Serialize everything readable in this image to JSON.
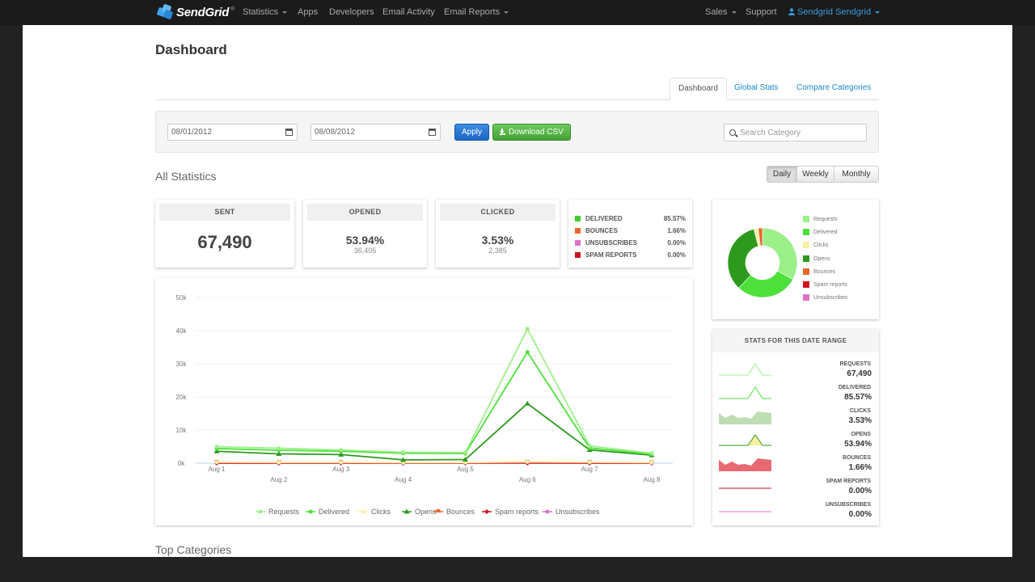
{
  "app": {
    "brand": "SendGrid",
    "brand_mark": "®"
  },
  "topnav": {
    "items": [
      {
        "label": "Statistics",
        "dropdown": true
      },
      {
        "label": "Apps",
        "dropdown": false
      },
      {
        "label": "Developers",
        "dropdown": false
      },
      {
        "label": "Email Activity",
        "dropdown": false
      },
      {
        "label": "Email Reports",
        "dropdown": true
      }
    ],
    "right": [
      {
        "label": "Sales",
        "dropdown": true
      },
      {
        "label": "Support",
        "dropdown": false
      },
      {
        "label": "Sendgrid Sendgrid",
        "dropdown": true,
        "icon": "user-icon"
      }
    ]
  },
  "page": {
    "title": "Dashboard"
  },
  "tabs": [
    {
      "label": "Dashboard",
      "active": true
    },
    {
      "label": "Global Stats",
      "active": false
    },
    {
      "label": "Compare Categories",
      "active": false
    }
  ],
  "filters": {
    "start_date": "08/01/2012",
    "end_date": "08/08/2012",
    "apply_label": "Apply",
    "download_label": "Download CSV",
    "search_placeholder": "Search Category"
  },
  "all_stats": {
    "heading": "All Statistics",
    "periods": [
      {
        "label": "Daily",
        "active": true
      },
      {
        "label": "Weekly",
        "active": false
      },
      {
        "label": "Monthly",
        "active": false
      }
    ]
  },
  "summary": {
    "sent": {
      "label": "SENT",
      "value": "67,490"
    },
    "opened": {
      "label": "OPENED",
      "pct": "53.94%",
      "count": "36,405"
    },
    "clicked": {
      "label": "CLICKED",
      "pct": "3.53%",
      "count": "2,385"
    },
    "rates": [
      {
        "label": "DELIVERED",
        "value": "85.57%",
        "color": "#3ecf2a"
      },
      {
        "label": "BOUNCES",
        "value": "1.66%",
        "color": "#e8672b"
      },
      {
        "label": "UNSUBSCRIBES",
        "value": "0.00%",
        "color": "#e070c8"
      },
      {
        "label": "SPAM REPORTS",
        "value": "0.00%",
        "color": "#d0101e"
      }
    ]
  },
  "donut": {
    "legend": [
      {
        "label": "Requests",
        "color": "#9cf08a"
      },
      {
        "label": "Delivered",
        "color": "#4ee03a"
      },
      {
        "label": "Clicks",
        "color": "#f7efa6"
      },
      {
        "label": "Opens",
        "color": "#2d9a1e"
      },
      {
        "label": "Bounces",
        "color": "#e8672b"
      },
      {
        "label": "Spam reports",
        "color": "#d0101e"
      },
      {
        "label": "Unsubscribes",
        "color": "#e070c8"
      }
    ],
    "slices": [
      {
        "name": "Requests",
        "value": 0.33,
        "color": "#9cf08a"
      },
      {
        "name": "Delivered",
        "value": 0.29,
        "color": "#4ee03a"
      },
      {
        "name": "Opens",
        "value": 0.34,
        "color": "#2d9a1e"
      },
      {
        "name": "Clicks",
        "value": 0.02,
        "color": "#f7efa6"
      },
      {
        "name": "Bounces",
        "value": 0.02,
        "color": "#e8672b"
      }
    ]
  },
  "range": {
    "heading": "STATS FOR THIS DATE RANGE",
    "rows": [
      {
        "label": "REQUESTS",
        "value": "67,490",
        "spark": "line",
        "color": "#9cf08a"
      },
      {
        "label": "DELIVERED",
        "value": "85.57%",
        "spark": "line",
        "color": "#4ee03a"
      },
      {
        "label": "CLICKS",
        "value": "3.53%",
        "spark": "area",
        "color": "#b9dcae"
      },
      {
        "label": "OPENS",
        "value": "53.94%",
        "spark": "line-fill",
        "color": "#2d9a1e"
      },
      {
        "label": "BOUNCES",
        "value": "1.66%",
        "spark": "area",
        "color": "#e8616b"
      },
      {
        "label": "SPAM REPORTS",
        "value": "0.00%",
        "spark": "flat",
        "color": "#c40e1e"
      },
      {
        "label": "UNSUBSCRIBES",
        "value": "0.00%",
        "spark": "flat",
        "color": "#d973d1"
      }
    ]
  },
  "chart_data": {
    "type": "line",
    "x": [
      "Aug 1",
      "Aug 2",
      "Aug 3",
      "Aug 4",
      "Aug 5",
      "Aug 6",
      "Aug 7",
      "Aug 8"
    ],
    "yticks": [
      "0k",
      "10k",
      "20k",
      "30k",
      "40k",
      "50k"
    ],
    "ylim": [
      0,
      50000
    ],
    "grid": true,
    "legend_position": "bottom",
    "series": [
      {
        "name": "Requests",
        "color": "#9cf08a",
        "marker": "circle",
        "values": [
          5000,
          4500,
          4000,
          3300,
          3200,
          40500,
          5200,
          3000
        ]
      },
      {
        "name": "Delivered",
        "color": "#4ee03a",
        "marker": "circle",
        "values": [
          4400,
          3900,
          3600,
          3000,
          2900,
          33500,
          4600,
          2700
        ]
      },
      {
        "name": "Clicks",
        "color": "#f7efa6",
        "marker": "circle",
        "values": [
          300,
          250,
          250,
          200,
          200,
          400,
          300,
          200
        ]
      },
      {
        "name": "Opens",
        "color": "#2d9a1e",
        "marker": "triangle",
        "values": [
          3600,
          2800,
          2600,
          1000,
          1100,
          18000,
          4000,
          2400
        ]
      },
      {
        "name": "Bounces",
        "color": "#e8672b",
        "marker": "flag",
        "values": [
          250,
          200,
          200,
          150,
          150,
          300,
          250,
          150
        ]
      },
      {
        "name": "Spam reports",
        "color": "#d0101e",
        "marker": "diamond",
        "values": [
          50,
          40,
          40,
          30,
          30,
          60,
          50,
          30
        ]
      },
      {
        "name": "Unsubscribes",
        "color": "#e070c8",
        "marker": "circle",
        "values": [
          20,
          20,
          20,
          10,
          10,
          30,
          20,
          10
        ]
      }
    ]
  },
  "bottom": {
    "heading": "Top Categories"
  }
}
